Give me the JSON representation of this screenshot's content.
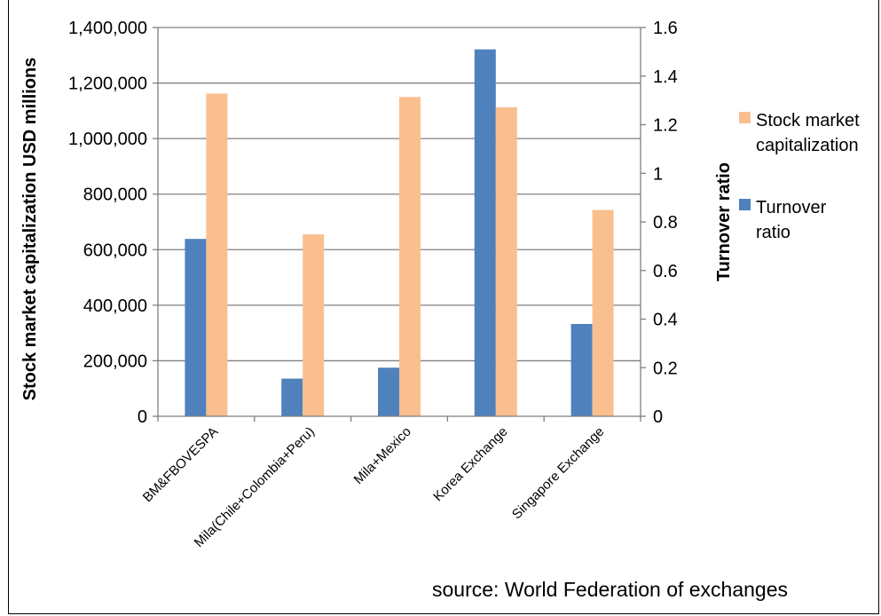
{
  "header": {
    "title_fragment": ""
  },
  "source_note": "source: World Federation of exchanges",
  "legend": {
    "items": [
      {
        "lines": [
          "Stock market",
          "capitalization"
        ],
        "color": "#f9bf8f"
      },
      {
        "lines": [
          "Turnover",
          "ratio"
        ],
        "color": "#4f81bd"
      }
    ]
  },
  "colors": {
    "turnover": "#4f81bd",
    "market_cap": "#f9bf8f",
    "grid": "#7f7f7f"
  },
  "chart_data": {
    "type": "bar",
    "categories": [
      "BM&FBOVESPA",
      "Mila(Chile+Colombia+Peru)",
      "Mila+Mexico",
      "Korea Exchange",
      "Singapore Exchange"
    ],
    "series": [
      {
        "name": "Turnover ratio",
        "axis": "right",
        "values": [
          0.73,
          0.155,
          0.2,
          1.51,
          0.38
        ]
      },
      {
        "name": "Stock market capitalization",
        "axis": "left",
        "values": [
          1162000,
          655000,
          1150000,
          1113000,
          743000
        ]
      }
    ],
    "ylabel": "Stock market capitalization USD millions",
    "y2label": "Turnover ratio",
    "ylim": [
      0,
      1400000
    ],
    "y2lim": [
      0,
      1.6
    ],
    "yticks": [
      "0",
      "200,000",
      "400,000",
      "600,000",
      "800,000",
      "1,000,000",
      "1,200,000",
      "1,400,000"
    ],
    "y2ticks": [
      "0",
      "0.2",
      "0.4",
      "0.6",
      "0.8",
      "1",
      "1.2",
      "1.4",
      "1.6"
    ],
    "grid": true,
    "legend_position": "right"
  }
}
